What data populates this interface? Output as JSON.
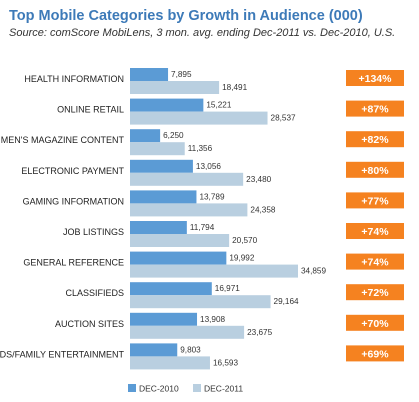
{
  "title": "Top Mobile Categories by Growth in Audience (000)",
  "subtitle": "Source: comScore MobiLens, 3 mon. avg. ending Dec-2011 vs. Dec-2010, U.S.",
  "colors": {
    "dec2010": "#5b9bd5",
    "dec2011": "#b9cfe0",
    "badge": "#f58220",
    "title": "#3d7ab8"
  },
  "chart_data": {
    "type": "bar",
    "orientation": "horizontal",
    "categories": [
      "HEALTH INFORMATION",
      "ONLINE RETAIL",
      "MEN'S MAGAZINE CONTENT",
      "ELECTRONIC PAYMENT",
      "GAMING INFORMATION",
      "JOB LISTINGS",
      "GENERAL REFERENCE",
      "CLASSIFIEDS",
      "AUCTION SITES",
      "KIDS/FAMILY ENTERTAINMENT"
    ],
    "series": [
      {
        "name": "DEC-2010",
        "values": [
          7895,
          15221,
          6250,
          13056,
          13789,
          11794,
          19992,
          16971,
          13908,
          9803
        ]
      },
      {
        "name": "DEC-2011",
        "values": [
          18491,
          28537,
          11356,
          23480,
          24358,
          20570,
          34859,
          29164,
          23675,
          16593
        ]
      }
    ],
    "value_labels": [
      [
        "7,895",
        "15,221",
        "6,250",
        "13,056",
        "13,789",
        "11,794",
        "19,992",
        "16,971",
        "13,908",
        "9,803"
      ],
      [
        "18,491",
        "28,537",
        "11,356",
        "23,480",
        "24,358",
        "20,570",
        "34,859",
        "29,164",
        "23,675",
        "16,593"
      ]
    ],
    "growth": [
      "+134%",
      "+87%",
      "+82%",
      "+80%",
      "+77%",
      "+74%",
      "+74%",
      "+72%",
      "+70%",
      "+69%"
    ],
    "xlim": [
      0,
      34859
    ],
    "grid": false,
    "legend": "bottom"
  }
}
